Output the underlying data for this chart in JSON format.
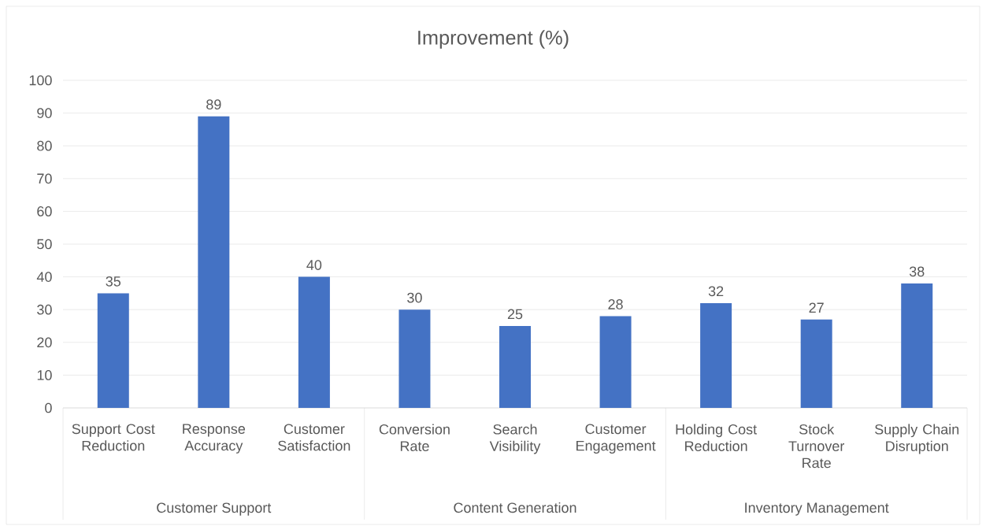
{
  "chart_data": {
    "type": "bar",
    "title": "Improvement (%)",
    "categories": [
      "Support Cost Reduction",
      "Response Accuracy",
      "Customer Satisfaction",
      "Conversion Rate",
      "Search Visibility",
      "Customer Engagement",
      "Holding Cost Reduction",
      "Stock Turnover Rate",
      "Supply Chain Disruption"
    ],
    "values": [
      35,
      89,
      40,
      30,
      25,
      28,
      32,
      27,
      38
    ],
    "color": "#4472c4",
    "ylim": [
      0,
      100
    ],
    "yticks": [
      0,
      10,
      20,
      30,
      40,
      50,
      60,
      70,
      80,
      90,
      100
    ],
    "grid": "y",
    "data_labels": true,
    "annotations": [
      "Customer Support",
      "Content Generation",
      "Inventory Management"
    ]
  }
}
